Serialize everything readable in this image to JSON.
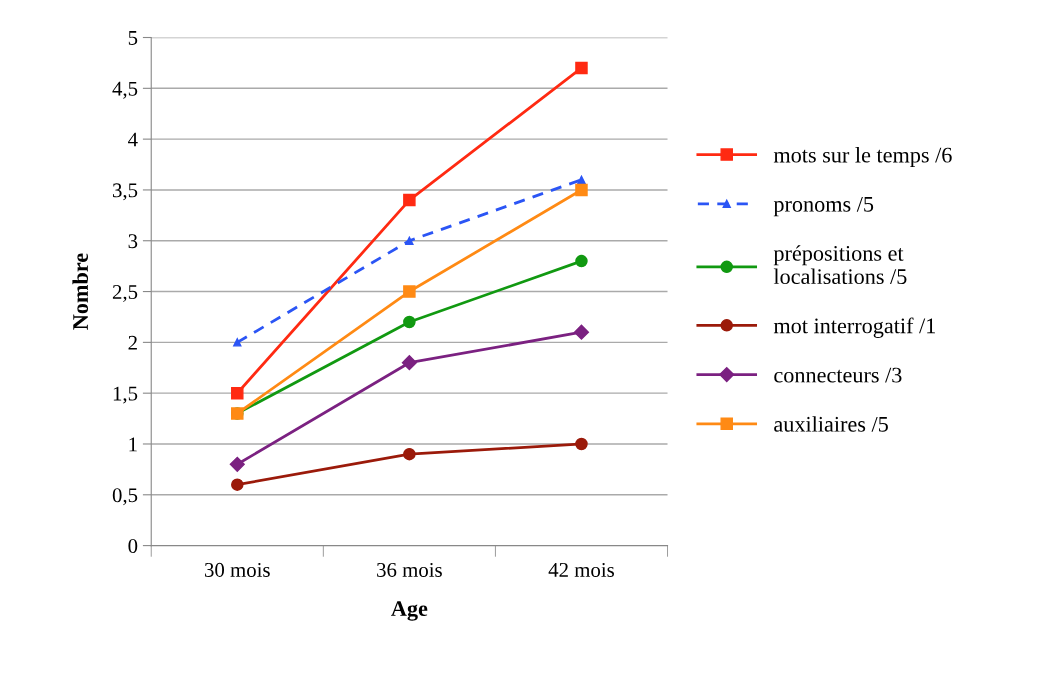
{
  "chart_data": {
    "type": "line",
    "xlabel": "Age",
    "ylabel": "Nombre",
    "categories": [
      "30 mois",
      "36 mois",
      "42 mois"
    ],
    "series": [
      {
        "name": "mots sur le temps /6",
        "color": "#ff2a12",
        "values": [
          1.5,
          3.4,
          4.7
        ],
        "marker": "square",
        "line_style": "solid"
      },
      {
        "name": "pronoms /5",
        "color": "#2b55f5",
        "values": [
          2.0,
          3.0,
          3.6
        ],
        "marker": "triangle",
        "line_style": "dashed"
      },
      {
        "name": "prépositions et\nlocalisations /5",
        "color": "#119911",
        "values": [
          1.3,
          2.2,
          2.8
        ],
        "marker": "circle",
        "line_style": "solid"
      },
      {
        "name": "mot interrogatif /1",
        "color": "#9b1a0a",
        "values": [
          0.6,
          0.9,
          1.0
        ],
        "marker": "circle",
        "line_style": "solid"
      },
      {
        "name": "connecteurs /3",
        "color": "#7b2181",
        "values": [
          0.8,
          1.8,
          2.1
        ],
        "marker": "diamond",
        "line_style": "solid"
      },
      {
        "name": "auxiliaires /5",
        "color": "#ff8a14",
        "values": [
          1.3,
          2.5,
          3.5
        ],
        "marker": "square",
        "line_style": "solid"
      }
    ],
    "ylim": [
      0,
      5
    ],
    "yticks": [
      0,
      {
        "value": 0.5,
        "label": "0,5"
      },
      1,
      {
        "value": 1.5,
        "label": "1,5"
      },
      2,
      {
        "value": 2.5,
        "label": "2,5"
      },
      3,
      {
        "value": 3.5,
        "label": "3,5"
      },
      4,
      {
        "value": 4.5,
        "label": "4,5"
      },
      5
    ],
    "grid": "y",
    "legend": "right"
  }
}
